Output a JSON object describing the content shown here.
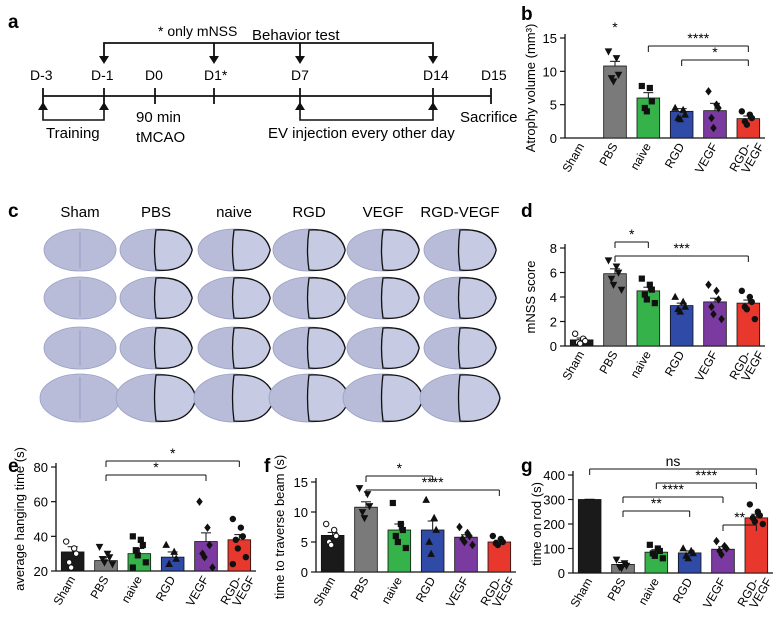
{
  "panels": {
    "a": {
      "label": "a",
      "note": "* only mNSS",
      "behavior": "Behavior test",
      "timepoints": [
        "D-3",
        "D-1",
        "D0",
        "D1*",
        "D7",
        "D14",
        "D15"
      ],
      "training": "Training",
      "surgery_1": "90 min",
      "surgery_2": "tMCAO",
      "injection": "EV injection every other day",
      "sacrifice": "Sacrifice"
    },
    "c": {
      "label": "c",
      "groups": [
        "Sham",
        "PBS",
        "naive",
        "RGD",
        "VEGF",
        "RGD-VEGF"
      ]
    }
  },
  "colors": {
    "Sham": "#1a1a1a",
    "PBS": "#7a7a7a",
    "naive": "#36b24a",
    "RGD": "#2f4aa7",
    "VEGF": "#7b3aa0",
    "RGD-VEGF": "#e8382e"
  },
  "chart_data": [
    {
      "panel": "b",
      "type": "bar",
      "categories": [
        "Sham",
        "PBS",
        "naive",
        "RGD",
        "VEGF",
        "RGD-VEGF"
      ],
      "values": [
        0,
        10.8,
        6.0,
        4.0,
        4.1,
        2.9
      ],
      "errors": [
        0,
        0.7,
        0.8,
        0.4,
        1.1,
        0.4
      ],
      "points": [
        [],
        [
          13.0,
          12.0,
          9.5,
          9.0,
          8.5
        ],
        [
          7.8,
          7.5,
          5.5,
          4.5,
          4.0
        ],
        [
          4.5,
          4.2,
          3.5,
          3.0,
          2.8
        ],
        [
          7.0,
          5.0,
          4.5,
          3.0,
          1.5
        ],
        [
          4.0,
          3.5,
          3.0,
          2.5,
          2.0
        ]
      ],
      "ylabel": "Atrophy volume (mm³)",
      "ylim": [
        0,
        15
      ],
      "yticks": [
        "0",
        "5",
        "10",
        "15"
      ],
      "sig": [
        {
          "text": "*",
          "over": 1
        },
        {
          "text": "****",
          "from": 2,
          "to": 5
        },
        {
          "text": "*",
          "from": 3,
          "to": 5
        }
      ]
    },
    {
      "panel": "d",
      "type": "bar",
      "categories": [
        "Sham",
        "PBS",
        "naive",
        "RGD",
        "VEGF",
        "RGD-VEGF"
      ],
      "values": [
        0.5,
        5.9,
        4.5,
        3.3,
        3.6,
        3.5
      ],
      "errors": [
        0.15,
        0.4,
        0.3,
        0.2,
        0.3,
        0.25
      ],
      "points": [
        [
          1.0,
          0.6,
          0.4,
          0.3,
          0.2
        ],
        [
          7.0,
          6.5,
          6.0,
          5.5,
          5.0,
          4.6
        ],
        [
          5.5,
          5.0,
          4.6,
          4.2,
          3.8,
          3.5
        ],
        [
          4.0,
          3.6,
          3.2,
          3.0,
          2.8
        ],
        [
          5.0,
          4.5,
          3.8,
          3.2,
          2.6,
          2.2
        ],
        [
          4.5,
          4.0,
          3.6,
          3.2,
          3.0,
          2.2
        ]
      ],
      "ylabel": "mNSS score",
      "ylim": [
        0,
        8
      ],
      "yticks": [
        "0",
        "2",
        "4",
        "6",
        "8"
      ],
      "sig": [
        {
          "text": "*",
          "from": 1,
          "to": 2
        },
        {
          "text": "***",
          "from": 1,
          "to": 5
        }
      ]
    },
    {
      "panel": "e",
      "type": "bar",
      "categories": [
        "Sham",
        "PBS",
        "naive",
        "RGD",
        "VEGF",
        "RGD-VEGF"
      ],
      "values": [
        31,
        26,
        30,
        28,
        37,
        38
      ],
      "errors": [
        3,
        2,
        3,
        3,
        5,
        3
      ],
      "points": [
        [
          37,
          33,
          30,
          25,
          22
        ],
        [
          34,
          30,
          28,
          27,
          25,
          24
        ],
        [
          40,
          38,
          35,
          32,
          29,
          25,
          22
        ],
        [
          35,
          31,
          27,
          24
        ],
        [
          60,
          45,
          35,
          30,
          28,
          22
        ],
        [
          50,
          45,
          40,
          38,
          33,
          28,
          24
        ]
      ],
      "ylabel": "average hanging time (s)",
      "ylim": [
        20,
        80
      ],
      "yticks": [
        "20",
        "40",
        "60",
        "80"
      ],
      "sig": [
        {
          "text": "*",
          "from": 1,
          "to": 5
        },
        {
          "text": "*",
          "from": 1,
          "to": 4
        }
      ]
    },
    {
      "panel": "f",
      "type": "bar",
      "categories": [
        "Sham",
        "PBS",
        "naive",
        "RGD",
        "VEGF",
        "RGD-VEGF"
      ],
      "values": [
        6.1,
        10.8,
        7.0,
        7.0,
        5.8,
        5.0
      ],
      "errors": [
        0.5,
        0.9,
        1.0,
        1.5,
        0.4,
        0.3
      ],
      "points": [
        [
          8.0,
          7.0,
          6.0,
          5.0,
          4.5
        ],
        [
          14.0,
          13.0,
          11.0,
          10.0,
          9.0
        ],
        [
          11.5,
          8.0,
          7.0,
          6.0,
          5.0,
          4.0
        ],
        [
          12.0,
          9.0,
          7.0,
          5.0,
          3.0
        ],
        [
          7.5,
          6.5,
          6.0,
          5.5,
          5.0,
          4.5
        ],
        [
          6.0,
          5.5,
          5.0,
          4.8,
          4.5
        ]
      ],
      "ylabel": "time to traverse beam (s)",
      "ylim": [
        0,
        15
      ],
      "yticks": [
        "0",
        "5",
        "10",
        "15"
      ],
      "sig": [
        {
          "text": "*",
          "from": 1,
          "to": 3
        },
        {
          "text": "****",
          "from": 1,
          "to": 5
        }
      ]
    },
    {
      "panel": "g",
      "type": "bar",
      "categories": [
        "Sham",
        "PBS",
        "naive",
        "RGD",
        "VEGF",
        "RGD-VEGF"
      ],
      "values": [
        300,
        35,
        85,
        82,
        97,
        225
      ],
      "errors": [
        1,
        8,
        10,
        8,
        10,
        15
      ],
      "points": [
        [],
        [
          55,
          40,
          30,
          25,
          20
        ],
        [
          115,
          100,
          90,
          80,
          70,
          60
        ],
        [
          100,
          90,
          80,
          70,
          60
        ],
        [
          130,
          110,
          100,
          90,
          75
        ],
        [
          280,
          250,
          235,
          225,
          210,
          200
        ]
      ],
      "ylabel": "time on rod (s)",
      "ylim": [
        0,
        400
      ],
      "yticks": [
        "0",
        "100",
        "200",
        "300",
        "400"
      ],
      "sig": [
        {
          "text": "ns",
          "from": 0,
          "to": 5
        },
        {
          "text": "****",
          "from": 2,
          "to": 5
        },
        {
          "text": "****",
          "from": 1,
          "to": 4
        },
        {
          "text": "**",
          "from": 1,
          "to": 3
        },
        {
          "text": "**",
          "from": 4,
          "to": 5
        }
      ]
    }
  ]
}
